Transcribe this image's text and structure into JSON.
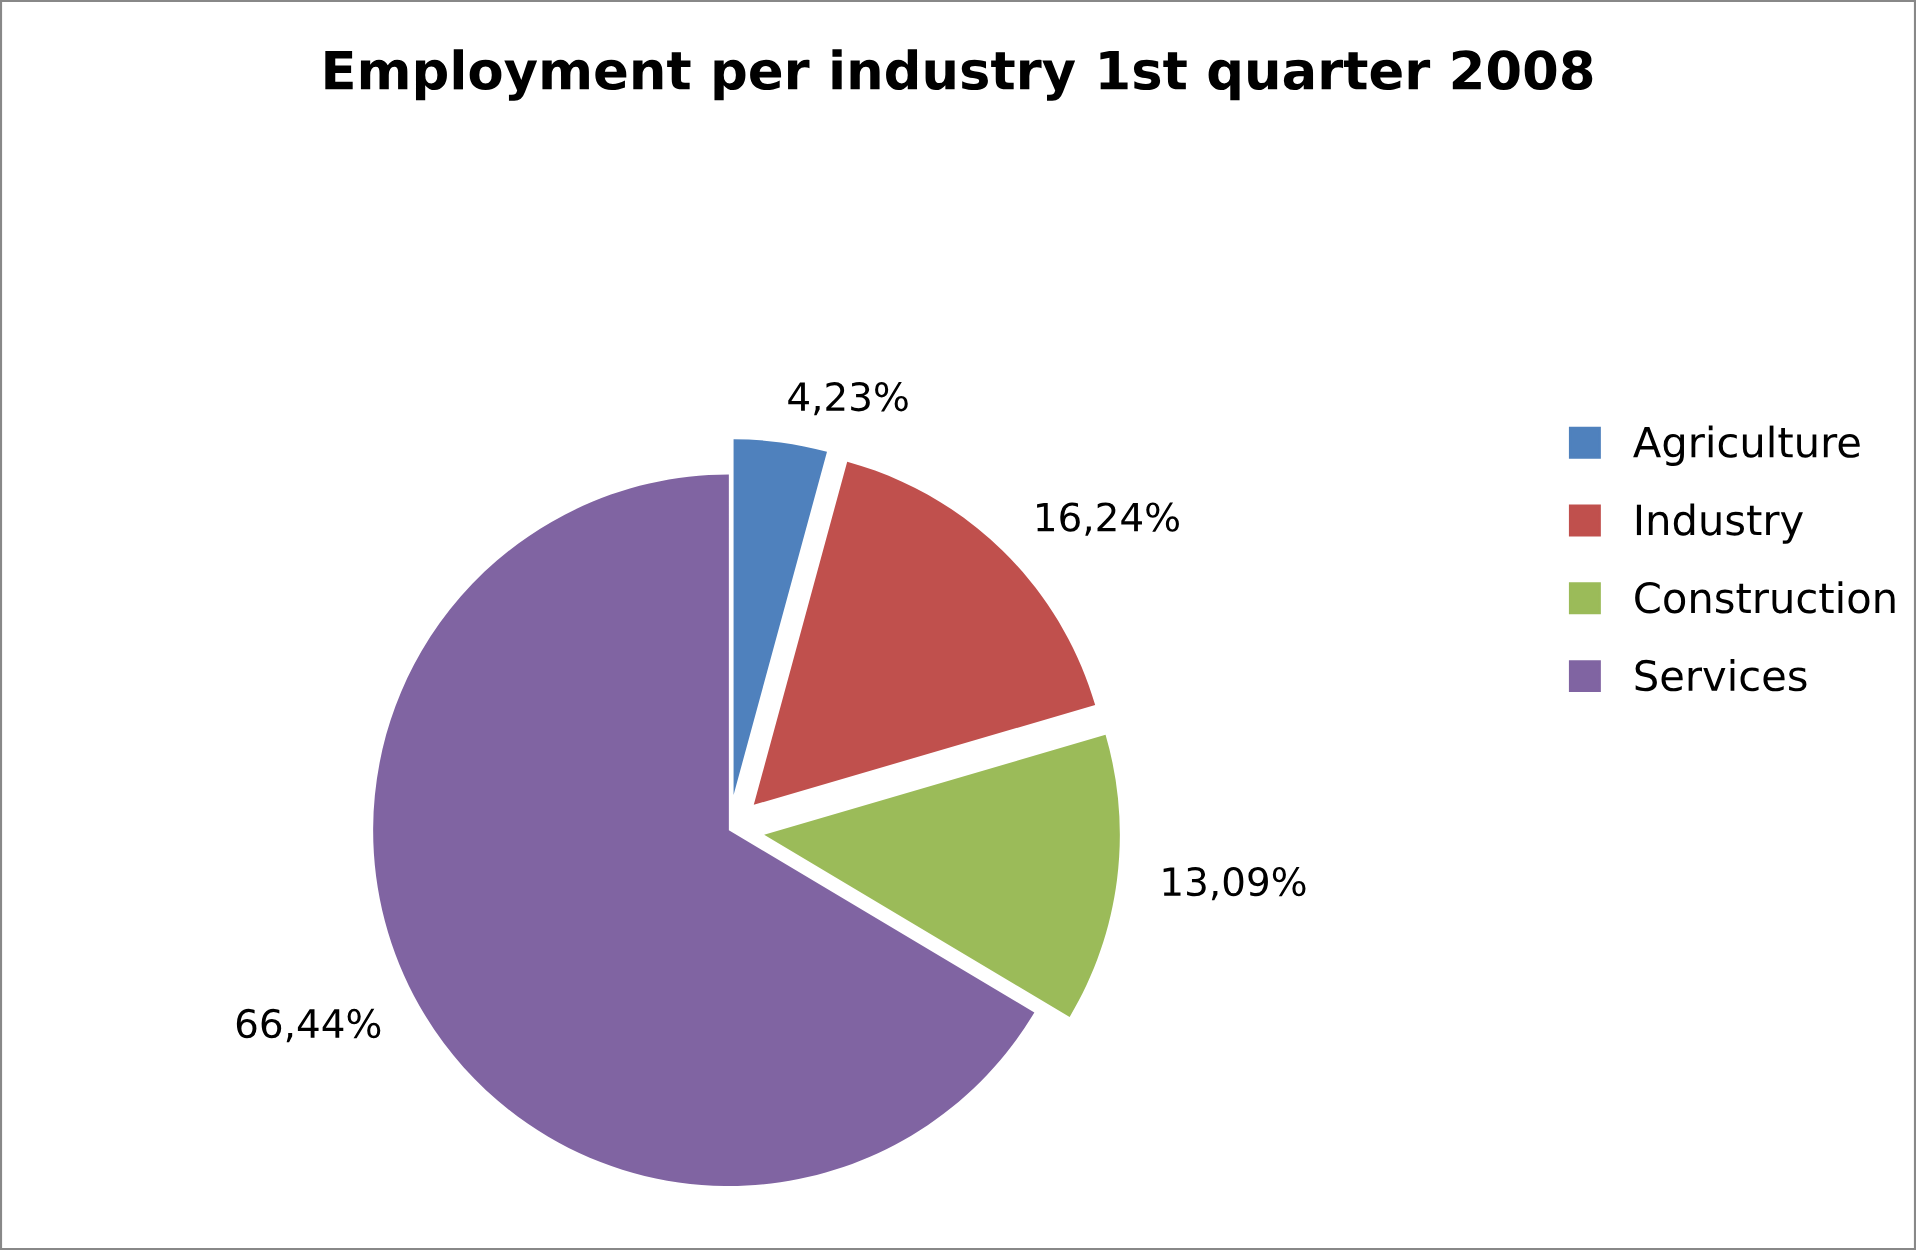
{
  "chart_data": {
    "type": "pie",
    "title": "Employment per industry 1st quarter 2008",
    "categories": [
      "Agriculture",
      "Industry",
      "Construction",
      "Services"
    ],
    "values": [
      4.23,
      16.24,
      13.09,
      66.44
    ],
    "colors": [
      "#4f81bd",
      "#c0504d",
      "#9bbb59",
      "#8064a2"
    ],
    "value_labels": [
      "4,23%",
      "16,24%",
      "13,09%",
      "66,44%"
    ],
    "legend": "right"
  }
}
